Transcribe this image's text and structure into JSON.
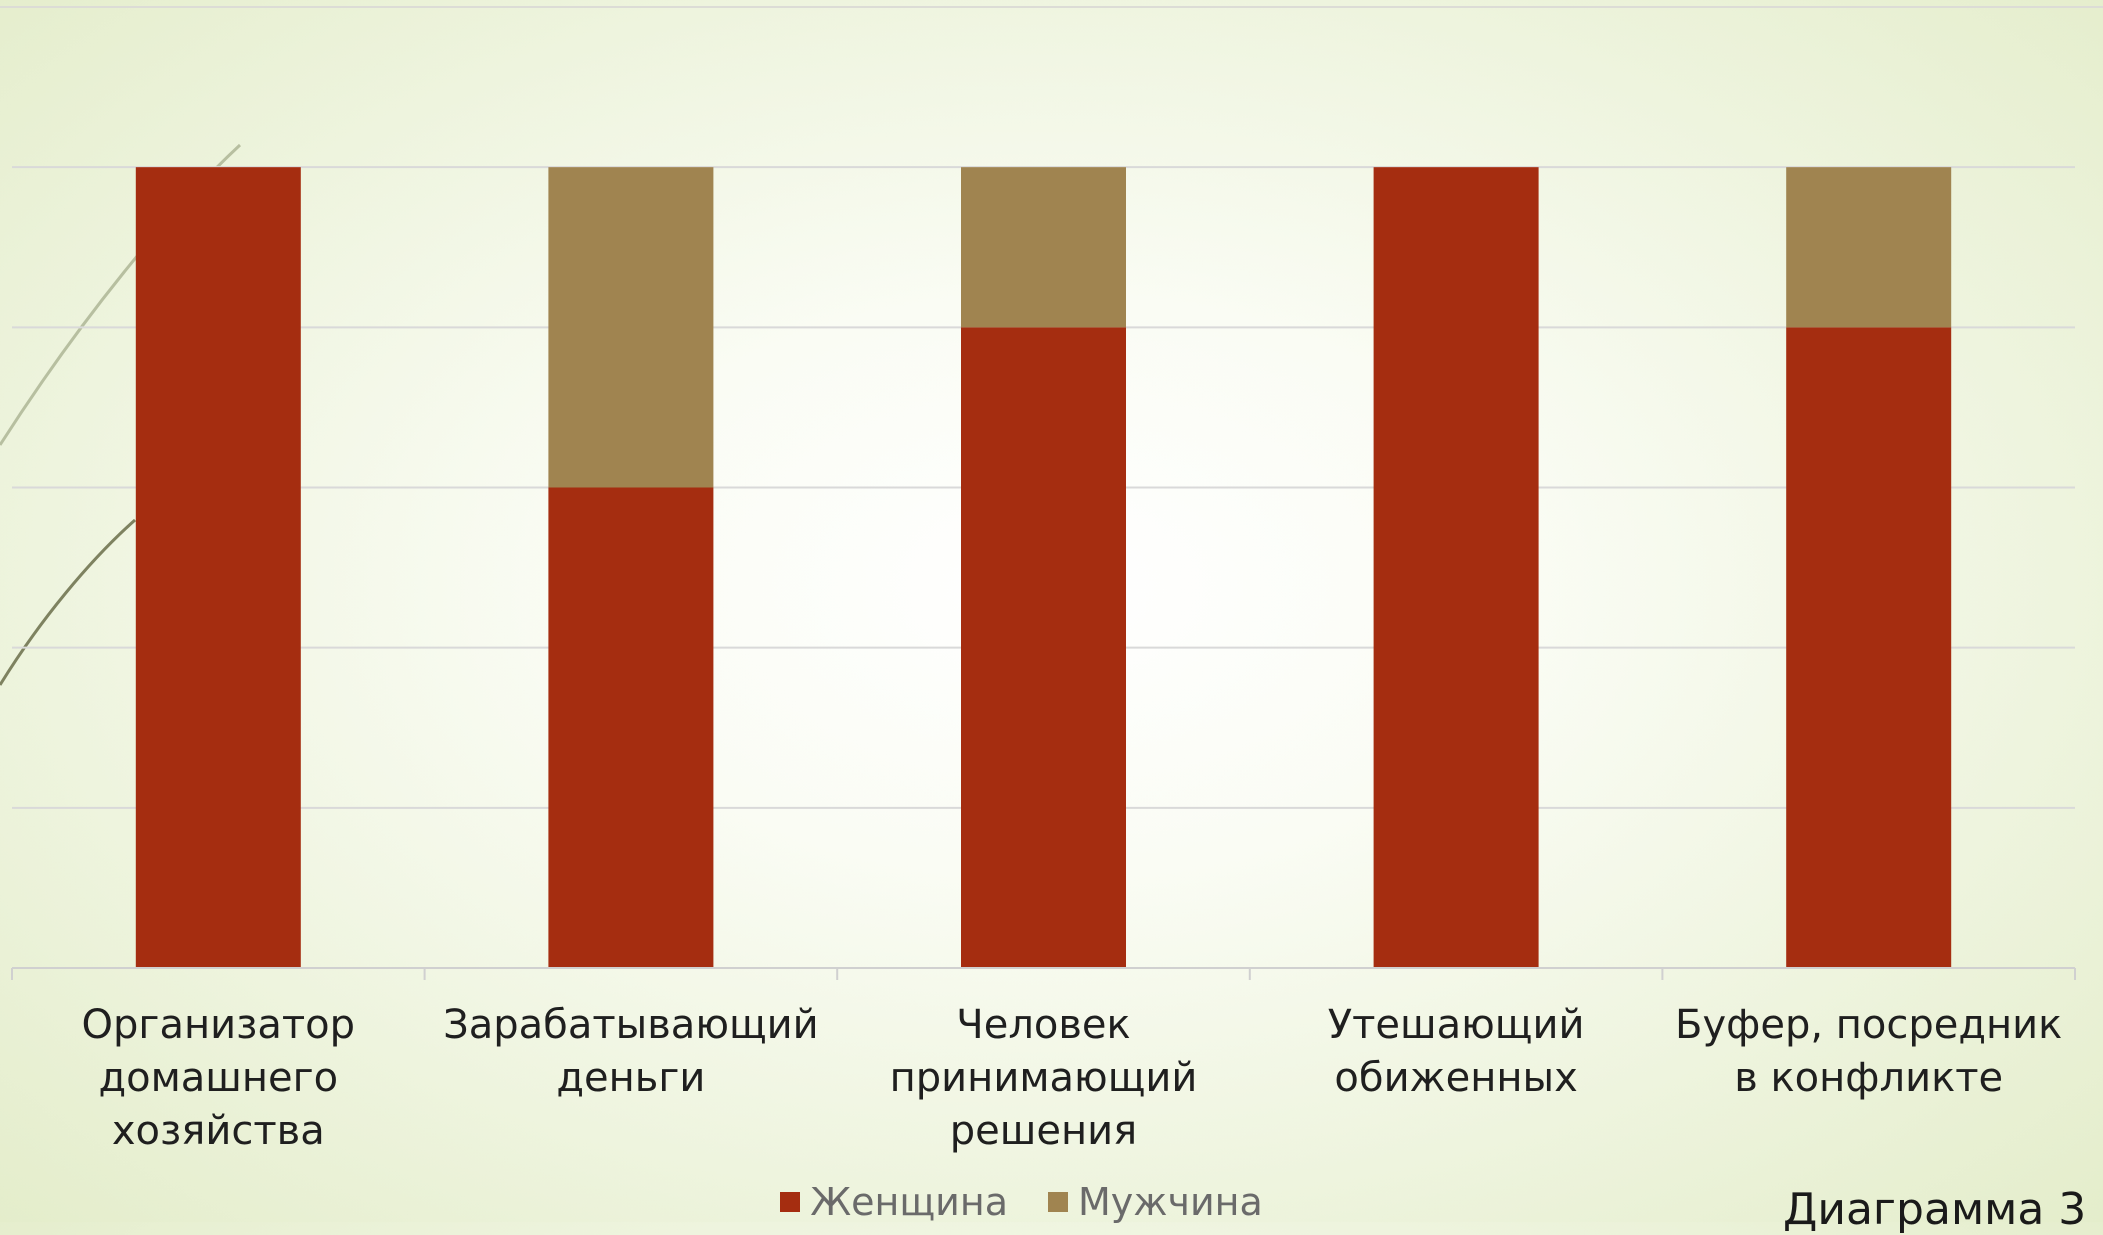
{
  "chart_data": {
    "type": "bar",
    "stacked": true,
    "categories": [
      "Организатор домашнего хозяйства",
      "Зарабатывающий деньги",
      "Человек принимающий решения",
      "Утешающий обиженных",
      "Буфер, посредник в конфликте"
    ],
    "category_lines": [
      [
        "Организатор",
        "домашнего",
        "хозяйства"
      ],
      [
        "Зарабатывающий",
        "деньги"
      ],
      [
        "Человек",
        "принимающий",
        "решения"
      ],
      [
        "Утешающий",
        "обиженных"
      ],
      [
        "Буфер, посредник",
        "в конфликте"
      ]
    ],
    "series": [
      {
        "name": "Женщина",
        "color": "#a52d10",
        "values": [
          5,
          3,
          4,
          5,
          4
        ]
      },
      {
        "name": "Мужчина",
        "color": "#a08450",
        "values": [
          0,
          2,
          1,
          0,
          1
        ]
      }
    ],
    "ylim": [
      0,
      6
    ],
    "y_grid_step": 1,
    "grid": true,
    "legend": "bottom",
    "xlabel": "",
    "ylabel": "",
    "title": ""
  },
  "caption": "Диаграмма 3"
}
